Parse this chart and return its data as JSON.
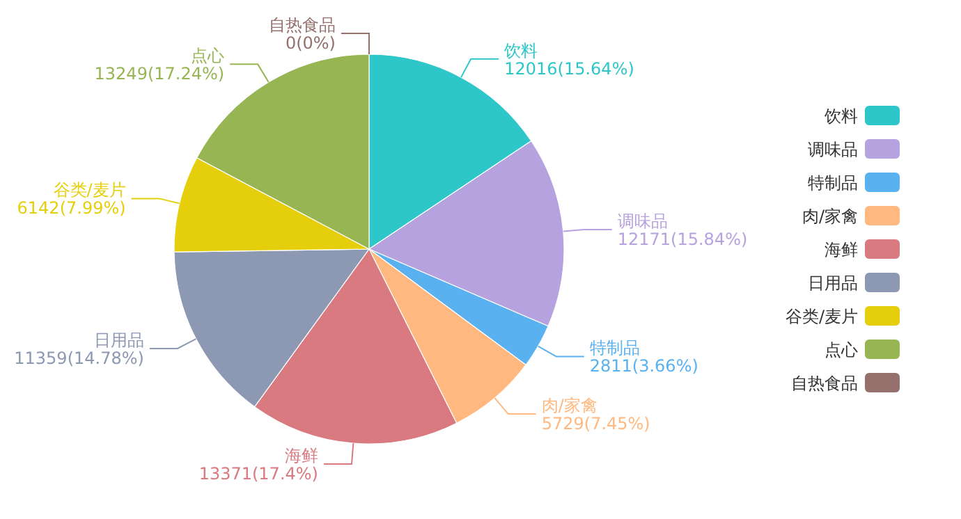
{
  "chart_data": {
    "type": "pie",
    "categories": [
      "饮料",
      "调味品",
      "特制品",
      "肉/家禽",
      "海鲜",
      "日用品",
      "谷类/麦片",
      "点心",
      "自热食品"
    ],
    "values": [
      12016,
      12171,
      2811,
      5729,
      13371,
      11359,
      6142,
      13249,
      0
    ],
    "value_labels": [
      "12016(15.64%)",
      "12171(15.84%)",
      "2811(3.66%)",
      "5729(7.45%)",
      "13371(17.4%)",
      "11359(14.78%)",
      "6142(7.99%)",
      "13249(17.24%)",
      "0(0%)"
    ],
    "colors": [
      "#2ec7c9",
      "#b6a2de",
      "#5ab1ef",
      "#ffb980",
      "#d87a80",
      "#8d98b3",
      "#e5cf0d",
      "#97b552",
      "#95706d"
    ],
    "legend": "right"
  }
}
